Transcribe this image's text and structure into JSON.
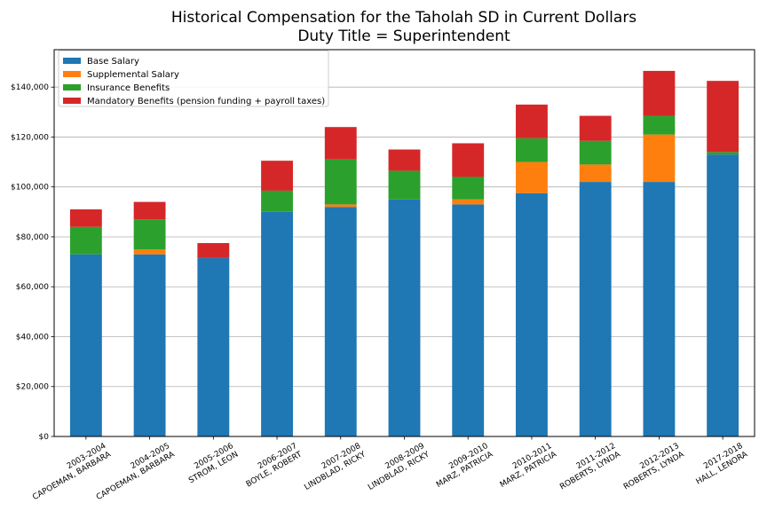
{
  "chart_data": {
    "type": "bar",
    "stacked": true,
    "title": [
      "Historical Compensation for the Taholah SD in Current Dollars",
      "Duty Title = Superintendent"
    ],
    "xlabel": "",
    "ylabel": "",
    "ylim": [
      0,
      155000
    ],
    "yticks": [
      0,
      20000,
      40000,
      60000,
      80000,
      100000,
      120000,
      140000
    ],
    "ytick_labels": [
      "$0",
      "$20,000",
      "$40,000",
      "$60,000",
      "$80,000",
      "$100,000",
      "$120,000",
      "$140,000"
    ],
    "grid": "horizontal",
    "legend_position": "top-left",
    "categories": [
      [
        "2003-2004",
        "CAPOEMAN, BARBARA"
      ],
      [
        "2004-2005",
        "CAPOEMAN, BARBARA"
      ],
      [
        "2005-2006",
        "STROM, LEON"
      ],
      [
        "2006-2007",
        "BOYLE, ROBERT"
      ],
      [
        "2007-2008",
        "LINDBLAD, RICKY"
      ],
      [
        "2008-2009",
        "LINDBLAD, RICKY"
      ],
      [
        "2009-2010",
        "MARZ, PATRICIA"
      ],
      [
        "2010-2011",
        "MARZ, PATRICIA"
      ],
      [
        "2011-2012",
        "ROBERTS, LYNDA"
      ],
      [
        "2012-2013",
        "ROBERTS, LYNDA"
      ],
      [
        "2017-2018",
        "HALL, LENORA"
      ]
    ],
    "series": [
      {
        "name": "Base Salary",
        "color": "#1f77b4",
        "values": [
          73000,
          73000,
          71500,
          90000,
          92000,
          95000,
          93000,
          97500,
          102000,
          102000,
          113000
        ]
      },
      {
        "name": "Supplemental Salary",
        "color": "#ff7f0e",
        "values": [
          0,
          2000,
          0,
          0,
          1000,
          0,
          2000,
          12500,
          7000,
          19000,
          0
        ]
      },
      {
        "name": "Insurance Benefits",
        "color": "#2ca02c",
        "values": [
          11000,
          12000,
          0,
          8500,
          18000,
          11500,
          9000,
          9500,
          9500,
          7500,
          1000
        ]
      },
      {
        "name": "Mandatory Benefits (pension funding + payroll taxes)",
        "color": "#d62728",
        "values": [
          7000,
          7000,
          6000,
          12000,
          13000,
          8500,
          13500,
          13500,
          10000,
          18000,
          28500
        ]
      }
    ]
  }
}
